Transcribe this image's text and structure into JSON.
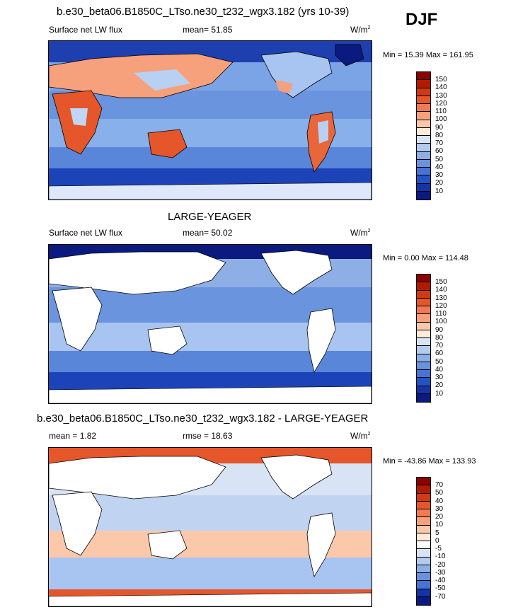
{
  "season": "DJF",
  "panels": [
    {
      "title": "b.e30_beta06.B1850C_LTso.ne30_t232_wgx3.182 (yrs 10-39)",
      "variable": "Surface net LW flux",
      "stat": "mean=  51.85",
      "units": "W/m",
      "units_sup": "2",
      "minmax": "Min =  15.39 Max = 161.95",
      "colorbar_labels": [
        "150",
        "140",
        "130",
        "120",
        "110",
        "100",
        "90",
        "80",
        "70",
        "60",
        "50",
        "40",
        "30",
        "20",
        "10"
      ],
      "colorbar_colors": [
        "#8b0000",
        "#b21a00",
        "#d03a12",
        "#e5562a",
        "#f27a52",
        "#f7a07c",
        "#fbc9aa",
        "#fdebd9",
        "#d8e4f6",
        "#b4cbee",
        "#8eaee6",
        "#6a90de",
        "#4873d6",
        "#2453c8",
        "#1632a6",
        "#0a1a7f"
      ]
    },
    {
      "title": "LARGE-YEAGER",
      "variable": "Surface net LW flux",
      "stat": "mean=  50.02",
      "units": "W/m",
      "units_sup": "2",
      "minmax": "Min =   0.00 Max = 114.48",
      "colorbar_labels": [
        "150",
        "140",
        "130",
        "120",
        "110",
        "100",
        "90",
        "80",
        "70",
        "60",
        "50",
        "40",
        "30",
        "20",
        "10"
      ],
      "colorbar_colors": [
        "#8b0000",
        "#b21a00",
        "#d03a12",
        "#e5562a",
        "#f27a52",
        "#f7a07c",
        "#fbc9aa",
        "#fdebd9",
        "#d8e4f6",
        "#b4cbee",
        "#8eaee6",
        "#6a90de",
        "#4873d6",
        "#2453c8",
        "#1632a6",
        "#0a1a7f"
      ]
    },
    {
      "title": "b.e30_beta06.B1850C_LTso.ne30_t232_wgx3.182 - LARGE-YEAGER",
      "variable": "mean =   1.82",
      "stat": "rmse =  18.63",
      "units": "W/m",
      "units_sup": "2",
      "minmax": "Min = -43.86 Max = 133.93",
      "colorbar_labels": [
        "70",
        "50",
        "40",
        "30",
        "20",
        "10",
        "5",
        "0",
        "-5",
        "-10",
        "-20",
        "-30",
        "-40",
        "-50",
        "-70"
      ],
      "colorbar_colors": [
        "#8b0000",
        "#b21a00",
        "#d03a12",
        "#e5562a",
        "#f27a52",
        "#f7a07c",
        "#fbc9aa",
        "#fdebd9",
        "#ffffff",
        "#d8e4f6",
        "#b4cbee",
        "#8eaee6",
        "#6a90de",
        "#4873d6",
        "#1632a6",
        "#0a1a7f"
      ]
    }
  ]
}
